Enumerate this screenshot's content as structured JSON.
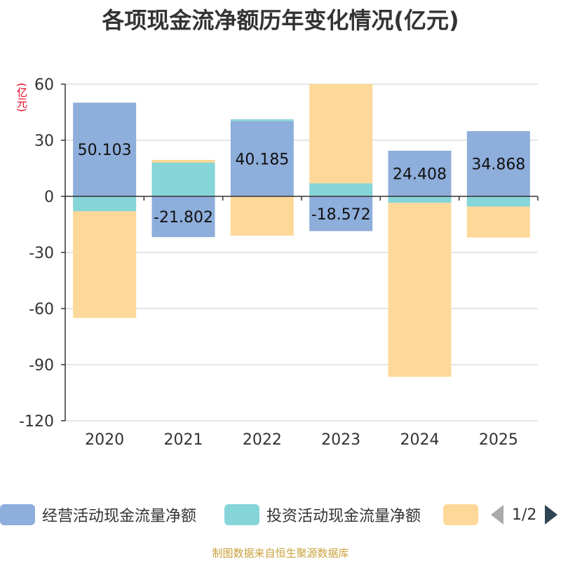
{
  "chart_data": {
    "type": "bar",
    "stacked": true,
    "title": "各项现金流净额历年变化情况(亿元)",
    "unit_label": "(亿元)",
    "categories": [
      "2020",
      "2021",
      "2022",
      "2023",
      "2024",
      "2025"
    ],
    "ylim": [
      -120,
      60
    ],
    "yticks": [
      60,
      30,
      0,
      -30,
      -60,
      -90,
      -120
    ],
    "series": [
      {
        "name": "经营活动现金流量净额",
        "color": "#8eaedb",
        "values": [
          50.103,
          -21.802,
          40.185,
          -18.572,
          24.408,
          34.868
        ],
        "labels": [
          "50.103",
          "-21.802",
          "40.185",
          "-18.572",
          "24.408",
          "34.868"
        ]
      },
      {
        "name": "投资活动现金流量净额",
        "color": "#86d5d8",
        "values": [
          -8,
          18,
          1,
          7,
          -3.5,
          -5.5
        ]
      },
      {
        "name": "",
        "color": "#fdd898",
        "values": [
          -57,
          1.5,
          -21,
          53,
          -93,
          -16.5
        ]
      }
    ]
  },
  "legend": {
    "items": [
      {
        "label": "经营活动现金流量净额",
        "color": "#8eaedb"
      },
      {
        "label": "投资活动现金流量净额",
        "color": "#86d5d8"
      },
      {
        "label": "",
        "color": "#fdd898"
      }
    ],
    "page": "1/2"
  },
  "source": "制图数据来自恒生聚源数据库"
}
